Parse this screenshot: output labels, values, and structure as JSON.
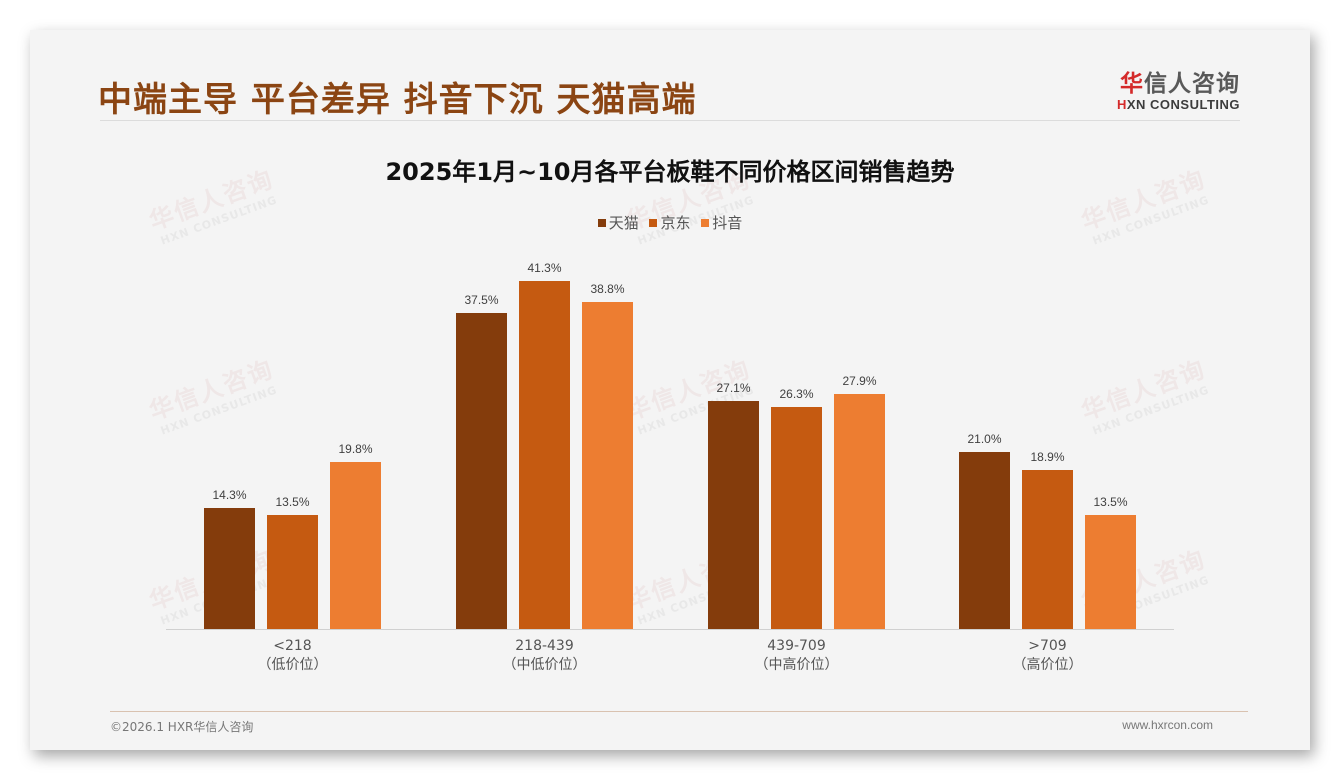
{
  "header": {
    "headline": "中端主导 平台差异 抖音下沉 天猫高端",
    "logo_cn_first": "华",
    "logo_cn_rest": "信人咨询",
    "logo_en_first": "H",
    "logo_en_rest": "XN CONSULTING"
  },
  "watermark": {
    "cn": "华信人咨询",
    "en": "HXN CONSULTING"
  },
  "footer": {
    "copyright": "©2026.1 HXR华信人咨询",
    "website": "www.hxrcon.com"
  },
  "colors": {
    "headline": "#8b4513",
    "tmall": "#843c0c",
    "jd": "#c55a11",
    "douyin": "#ed7d31"
  },
  "chart_data": {
    "type": "bar",
    "title": "2025年1月~10月各平台板鞋不同价格区间销售趋势",
    "xlabel": "",
    "ylabel": "",
    "ylim": [
      0,
      45
    ],
    "grid": false,
    "legend_position": "top",
    "categories": [
      "<218（低价位）",
      "218-439（中低价位）",
      "439-709（中高价位）",
      ">709（高价位）"
    ],
    "category_labels": [
      {
        "range": "<218",
        "tier": "（低价位）"
      },
      {
        "range": "218-439",
        "tier": "（中低价位）"
      },
      {
        "range": "439-709",
        "tier": "（中高价位）"
      },
      {
        "range": ">709",
        "tier": "（高价位）"
      }
    ],
    "series": [
      {
        "name": "天猫",
        "color": "#843c0c",
        "values": [
          14.3,
          37.5,
          27.1,
          21.0
        ],
        "labels": [
          "14.3%",
          "37.5%",
          "27.1%",
          "21.0%"
        ]
      },
      {
        "name": "京东",
        "color": "#c55a11",
        "values": [
          13.5,
          41.3,
          26.3,
          18.9
        ],
        "labels": [
          "13.5%",
          "41.3%",
          "26.3%",
          "18.9%"
        ]
      },
      {
        "name": "抖音",
        "color": "#ed7d31",
        "values": [
          19.8,
          38.8,
          27.9,
          13.5
        ],
        "labels": [
          "19.8%",
          "38.8%",
          "27.9%",
          "13.5%"
        ]
      }
    ]
  }
}
